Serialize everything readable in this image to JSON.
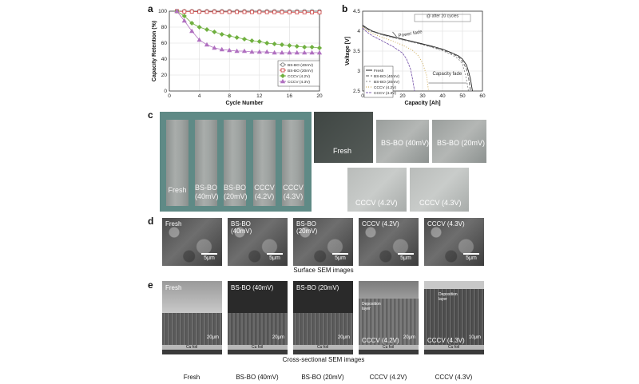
{
  "panels": {
    "a": {
      "letter": "a",
      "chart_data": {
        "type": "line",
        "xlabel": "Cycle Number",
        "ylabel": "Capacity Retention (%)",
        "xlim": [
          0,
          20
        ],
        "ylim": [
          0,
          100
        ],
        "xticks": [
          "0",
          "4",
          "8",
          "12",
          "16",
          "20"
        ],
        "yticks": [
          "0",
          "20",
          "40",
          "60",
          "80",
          "100"
        ],
        "grid": true,
        "legend_position": "bottom-right",
        "series": [
          {
            "name": "BS-BO (40mV)",
            "color": "#7a7a7a",
            "marker": "circle",
            "x": [
              1,
              2,
              3,
              4,
              5,
              6,
              7,
              8,
              9,
              10,
              11,
              12,
              13,
              14,
              15,
              16,
              17,
              18,
              19,
              20
            ],
            "values": [
              100,
              100,
              100,
              100,
              100,
              100,
              100,
              100,
              100,
              100,
              100,
              100,
              100,
              100,
              100,
              100,
              100,
              100,
              100,
              100
            ]
          },
          {
            "name": "BS-BO (20mV)",
            "color": "#d05050",
            "marker": "square",
            "x": [
              1,
              2,
              3,
              4,
              5,
              6,
              7,
              8,
              9,
              10,
              11,
              12,
              13,
              14,
              15,
              16,
              17,
              18,
              19,
              20
            ],
            "values": [
              100,
              99.5,
              99.5,
              99.3,
              99.2,
              99.2,
              99.1,
              99,
              99,
              99,
              98.9,
              98.9,
              98.8,
              98.8,
              98.7,
              98.7,
              98.6,
              98.6,
              98.5,
              98.5
            ]
          },
          {
            "name": "CCCV (4.2V)",
            "color": "#70b040",
            "marker": "diamond",
            "x": [
              1,
              2,
              3,
              4,
              5,
              6,
              7,
              8,
              9,
              10,
              11,
              12,
              13,
              14,
              15,
              16,
              17,
              18,
              19,
              20
            ],
            "values": [
              100,
              94,
              85,
              80,
              77,
              74,
              71,
              69,
              67,
              65,
              63,
              62,
              60,
              59,
              58,
              57,
              56,
              55,
              55,
              54
            ]
          },
          {
            "name": "CCCV (4.3V)",
            "color": "#b070c0",
            "marker": "triangle",
            "x": [
              1,
              2,
              3,
              4,
              5,
              6,
              7,
              8,
              9,
              10,
              11,
              12,
              13,
              14,
              15,
              16,
              17,
              18,
              19,
              20
            ],
            "values": [
              100,
              88,
              75,
              64,
              58,
              54,
              52,
              51,
              50,
              50,
              49,
              49,
              49,
              48,
              48,
              48,
              48,
              48,
              48,
              48
            ]
          }
        ]
      }
    },
    "b": {
      "letter": "b",
      "chart_data": {
        "type": "line",
        "xlabel": "Capacity [Ah]",
        "ylabel": "Voltage [V]",
        "xlim": [
          0,
          60
        ],
        "ylim": [
          2.5,
          4.5
        ],
        "xticks": [
          "0",
          "10",
          "20",
          "30",
          "40",
          "50",
          "60"
        ],
        "yticks": [
          "2.5",
          "3",
          "3.5",
          "4",
          "4.5"
        ],
        "grid": true,
        "legend_position": "bottom-left",
        "annotations": [
          "@ after 20 cycles",
          "Power fade",
          "Capacity fade"
        ],
        "series": [
          {
            "name": "Fresh",
            "color": "#222222",
            "dash": "",
            "x": [
              0,
              2,
              5,
              10,
              15,
              20,
              25,
              30,
              35,
              40,
              45,
              48,
              50,
              52,
              53,
              54,
              55
            ],
            "values": [
              4.15,
              4.08,
              4.0,
              3.92,
              3.86,
              3.8,
              3.74,
              3.68,
              3.62,
              3.55,
              3.45,
              3.38,
              3.3,
              3.15,
              3.0,
              2.8,
              2.5
            ]
          },
          {
            "name": "BS-BO (40mV)",
            "color": "#555555",
            "dash": "4,2",
            "x": [
              0,
              2,
              5,
              10,
              15,
              20,
              25,
              30,
              35,
              40,
              45,
              48,
              50,
              52,
              53,
              54
            ],
            "values": [
              4.13,
              4.06,
              3.99,
              3.91,
              3.85,
              3.79,
              3.73,
              3.67,
              3.6,
              3.53,
              3.43,
              3.35,
              3.25,
              3.05,
              2.85,
              2.5
            ]
          },
          {
            "name": "BS-BO (20mV)",
            "color": "#888888",
            "dash": "2,2",
            "x": [
              0,
              2,
              5,
              10,
              15,
              20,
              25,
              30,
              35,
              40,
              45,
              48,
              50,
              51,
              52,
              53
            ],
            "values": [
              4.12,
              4.05,
              3.98,
              3.9,
              3.84,
              3.78,
              3.72,
              3.66,
              3.59,
              3.51,
              3.4,
              3.3,
              3.18,
              3.0,
              2.8,
              2.5
            ]
          },
          {
            "name": "CCCV (4.2V)",
            "color": "#c8a040",
            "dash": "1,2",
            "x": [
              0,
              2,
              5,
              10,
              15,
              20,
              25,
              28,
              30,
              32,
              33
            ],
            "values": [
              4.1,
              4.02,
              3.94,
              3.84,
              3.75,
              3.65,
              3.52,
              3.38,
              3.2,
              2.9,
              2.5
            ]
          },
          {
            "name": "CCCV (4.3V)",
            "color": "#8060b0",
            "dash": "3,1",
            "x": [
              0,
              2,
              5,
              10,
              15,
              20,
              22,
              24,
              25,
              26
            ],
            "values": [
              4.08,
              3.98,
              3.88,
              3.75,
              3.62,
              3.45,
              3.3,
              3.05,
              2.8,
              2.5
            ]
          }
        ]
      }
    },
    "c": {
      "letter": "c",
      "strips": [
        {
          "label": "Fresh"
        },
        {
          "label": "BS-BO (40mV)"
        },
        {
          "label": "BS-BO (20mV)"
        },
        {
          "label": "CCCV (4.2V)"
        },
        {
          "label": "CCCV (4.3V)"
        }
      ],
      "tiles": [
        {
          "label": "Fresh"
        },
        {
          "label": "BS-BO (40mV)"
        },
        {
          "label": "BS-BO (20mV)"
        },
        {
          "label": "CCCV (4.2V)"
        },
        {
          "label": "CCCV (4.3V)"
        }
      ]
    },
    "d": {
      "letter": "d",
      "images": [
        {
          "label": "Fresh",
          "scale": "5μm"
        },
        {
          "label": "BS-BO (40mV)",
          "scale": "5μm"
        },
        {
          "label": "BS-BO (20mV)",
          "scale": "5μm"
        },
        {
          "label": "CCCV (4.2V)",
          "scale": "5μm"
        },
        {
          "label": "CCCV (4.3V)",
          "scale": "5μm"
        }
      ],
      "caption": "Surface SEM images"
    },
    "e": {
      "letter": "e",
      "images": [
        {
          "label": "Fresh",
          "scale": "20μm",
          "foil": "Cu foil",
          "layer": ""
        },
        {
          "label": "BS-BO (40mV)",
          "scale": "20μm",
          "foil": "Cu foil",
          "layer": ""
        },
        {
          "label": "BS-BO (20mV)",
          "scale": "20μm",
          "foil": "Cu foil",
          "layer": ""
        },
        {
          "label": "CCCV (4.2V)",
          "scale": "20μm",
          "foil": "Cu foil",
          "layer": "Deposition layer"
        },
        {
          "label": "CCCV (4.3V)",
          "scale": "10μm",
          "foil": "Cu foil",
          "layer": "Deposition layer"
        }
      ],
      "caption": "Cross-sectional SEM images"
    }
  },
  "bottom_labels": [
    "Fresh",
    "BS-BO (40mV)",
    "BS-BO (20mV)",
    "CCCV (4.2V)",
    "CCCV (4.3V)"
  ]
}
